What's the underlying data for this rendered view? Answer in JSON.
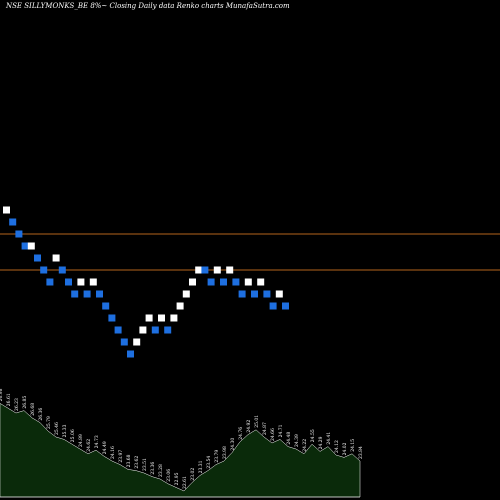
{
  "chart_data": {
    "type": "renko",
    "title": "NSE SILLYMONKS_BE 8%~ Closing Daily data  Renko  charts MunafaSutra.com",
    "xlabel": "",
    "ylabel": "",
    "grid": false,
    "colors": {
      "background": "#000000",
      "up_brick": "#ffffff",
      "down_brick": "#1e6fe0",
      "reference_line": "#b5651d",
      "volume_fill": "#0a2a0a",
      "volume_line": "#ffffff"
    },
    "reference_lines": [
      26.2,
      25.0
    ],
    "bricks": [
      {
        "dir": "up",
        "level": 27.0
      },
      {
        "dir": "down",
        "level": 26.6
      },
      {
        "dir": "down",
        "level": 26.2
      },
      {
        "dir": "down",
        "level": 25.8
      },
      {
        "dir": "up",
        "level": 25.8
      },
      {
        "dir": "down",
        "level": 25.4
      },
      {
        "dir": "down",
        "level": 25.0
      },
      {
        "dir": "down",
        "level": 24.6
      },
      {
        "dir": "up",
        "level": 25.4
      },
      {
        "dir": "down",
        "level": 25.0
      },
      {
        "dir": "down",
        "level": 24.6
      },
      {
        "dir": "down",
        "level": 24.2
      },
      {
        "dir": "up",
        "level": 24.6
      },
      {
        "dir": "down",
        "level": 24.2
      },
      {
        "dir": "up",
        "level": 24.6
      },
      {
        "dir": "down",
        "level": 24.2
      },
      {
        "dir": "down",
        "level": 23.8
      },
      {
        "dir": "down",
        "level": 23.4
      },
      {
        "dir": "down",
        "level": 23.0
      },
      {
        "dir": "down",
        "level": 22.6
      },
      {
        "dir": "down",
        "level": 22.2
      },
      {
        "dir": "up",
        "level": 22.6
      },
      {
        "dir": "up",
        "level": 23.0
      },
      {
        "dir": "up",
        "level": 23.4
      },
      {
        "dir": "down",
        "level": 23.0
      },
      {
        "dir": "up",
        "level": 23.4
      },
      {
        "dir": "down",
        "level": 23.0
      },
      {
        "dir": "up",
        "level": 23.4
      },
      {
        "dir": "up",
        "level": 23.8
      },
      {
        "dir": "up",
        "level": 24.2
      },
      {
        "dir": "up",
        "level": 24.6
      },
      {
        "dir": "up",
        "level": 25.0
      },
      {
        "dir": "down",
        "level": 25.0
      },
      {
        "dir": "down",
        "level": 24.6
      },
      {
        "dir": "up",
        "level": 25.0
      },
      {
        "dir": "down",
        "level": 24.6
      },
      {
        "dir": "up",
        "level": 25.0
      },
      {
        "dir": "down",
        "level": 24.6
      },
      {
        "dir": "down",
        "level": 24.2
      },
      {
        "dir": "up",
        "level": 24.6
      },
      {
        "dir": "down",
        "level": 24.2
      },
      {
        "dir": "up",
        "level": 24.6
      },
      {
        "dir": "down",
        "level": 24.2
      },
      {
        "dir": "down",
        "level": 23.8
      },
      {
        "dir": "up",
        "level": 24.2
      },
      {
        "dir": "down",
        "level": 23.8
      }
    ],
    "volume_labels": [
      "26.98",
      "26.61",
      "26.23",
      "26.85",
      "26.68",
      "26.36",
      "25.79",
      "25.46",
      "25.33",
      "25.06",
      "24.89",
      "24.62",
      "24.73",
      "24.49",
      "24.16",
      "23.97",
      "23.68",
      "23.62",
      "23.51",
      "23.36",
      "23.28",
      "23.06",
      "22.95",
      "22.61",
      "23.02",
      "23.31",
      "23.54",
      "23.79",
      "23.98",
      "24.30",
      "24.76",
      "24.92",
      "25.01",
      "24.87",
      "24.66",
      "24.71",
      "24.48",
      "24.39",
      "24.22",
      "24.55",
      "24.29",
      "24.41",
      "24.12",
      "24.02",
      "24.15",
      "23.84"
    ],
    "volume": [
      0.78,
      0.74,
      0.7,
      0.72,
      0.66,
      0.62,
      0.55,
      0.5,
      0.48,
      0.44,
      0.4,
      0.36,
      0.39,
      0.34,
      0.3,
      0.27,
      0.23,
      0.22,
      0.2,
      0.17,
      0.15,
      0.11,
      0.08,
      0.05,
      0.12,
      0.18,
      0.22,
      0.27,
      0.3,
      0.37,
      0.46,
      0.52,
      0.56,
      0.5,
      0.45,
      0.48,
      0.42,
      0.4,
      0.36,
      0.44,
      0.38,
      0.42,
      0.35,
      0.33,
      0.36,
      0.3
    ]
  }
}
